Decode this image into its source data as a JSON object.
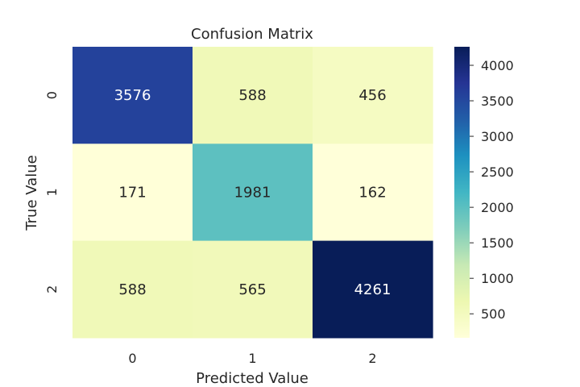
{
  "chart_data": {
    "type": "heatmap",
    "title": "Confusion Matrix",
    "xlabel": "Predicted Value",
    "ylabel": "True Value",
    "x_categories": [
      "0",
      "1",
      "2"
    ],
    "y_categories": [
      "0",
      "1",
      "2"
    ],
    "values": [
      [
        3576,
        588,
        456
      ],
      [
        171,
        1981,
        162
      ],
      [
        588,
        565,
        4261
      ]
    ],
    "colormap": "YlGnBu",
    "colorbar": {
      "min": 162,
      "max": 4261,
      "ticks": [
        500,
        1000,
        1500,
        2000,
        2500,
        3000,
        3500,
        4000
      ]
    }
  }
}
